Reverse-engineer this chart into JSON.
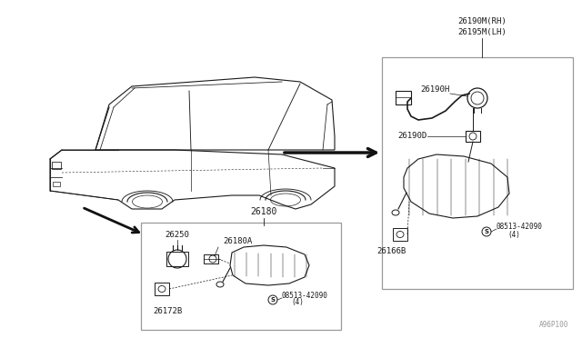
{
  "bg_color": "#ffffff",
  "line_color": "#1a1a1a",
  "box_line_color": "#999999",
  "diagram_code": "A96P100",
  "front_box_label": "26180",
  "rear_box_label_1": "26190M(RH)",
  "rear_box_label_2": "26195M(LH)",
  "car_color": "#1a1a1a",
  "fig_w": 6.4,
  "fig_h": 3.72,
  "dpi": 100
}
